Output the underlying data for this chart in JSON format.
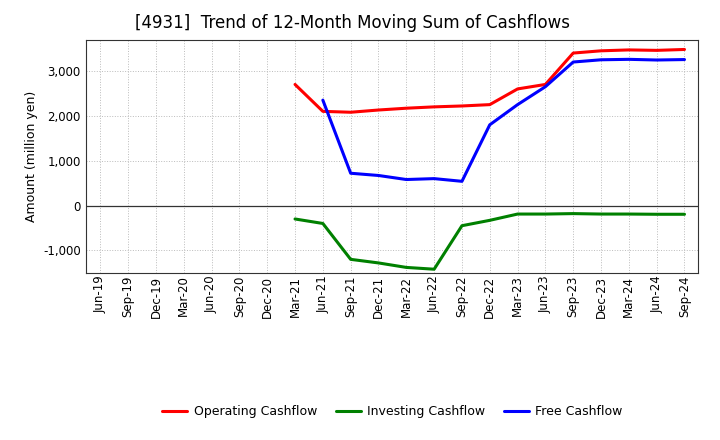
{
  "title": "[4931]  Trend of 12-Month Moving Sum of Cashflows",
  "ylabel": "Amount (million yen)",
  "xlabels": [
    "Jun-19",
    "Sep-19",
    "Dec-19",
    "Mar-20",
    "Jun-20",
    "Sep-20",
    "Dec-20",
    "Mar-21",
    "Jun-21",
    "Sep-21",
    "Dec-21",
    "Mar-22",
    "Jun-22",
    "Sep-22",
    "Dec-22",
    "Mar-23",
    "Jun-23",
    "Sep-23",
    "Dec-23",
    "Mar-24",
    "Jun-24",
    "Sep-24"
  ],
  "operating_cashflow": [
    null,
    null,
    null,
    null,
    null,
    null,
    null,
    2700,
    2100,
    2080,
    2130,
    2170,
    2200,
    2220,
    2250,
    2600,
    2700,
    3400,
    3450,
    3470,
    3460,
    3480
  ],
  "investing_cashflow": [
    null,
    null,
    null,
    null,
    null,
    null,
    null,
    -300,
    -400,
    -1200,
    -1280,
    -1380,
    -1420,
    -450,
    -330,
    -190,
    -190,
    -180,
    -190,
    -190,
    -195,
    -195
  ],
  "free_cashflow": [
    null,
    null,
    null,
    null,
    null,
    null,
    null,
    null,
    2350,
    720,
    670,
    580,
    600,
    540,
    1800,
    2250,
    2650,
    3200,
    3250,
    3260,
    3245,
    3255
  ],
  "ylim": [
    -1500,
    3700
  ],
  "yticks": [
    -1000,
    0,
    1000,
    2000,
    3000
  ],
  "operating_color": "#ff0000",
  "investing_color": "#008000",
  "free_color": "#0000ff",
  "line_width": 2.2,
  "bg_color": "#ffffff",
  "plot_bg_color": "#ffffff",
  "grid_color": "#bbbbbb",
  "legend_labels": [
    "Operating Cashflow",
    "Investing Cashflow",
    "Free Cashflow"
  ],
  "title_fontsize": 12,
  "ylabel_fontsize": 9,
  "tick_fontsize": 8.5,
  "legend_fontsize": 9
}
